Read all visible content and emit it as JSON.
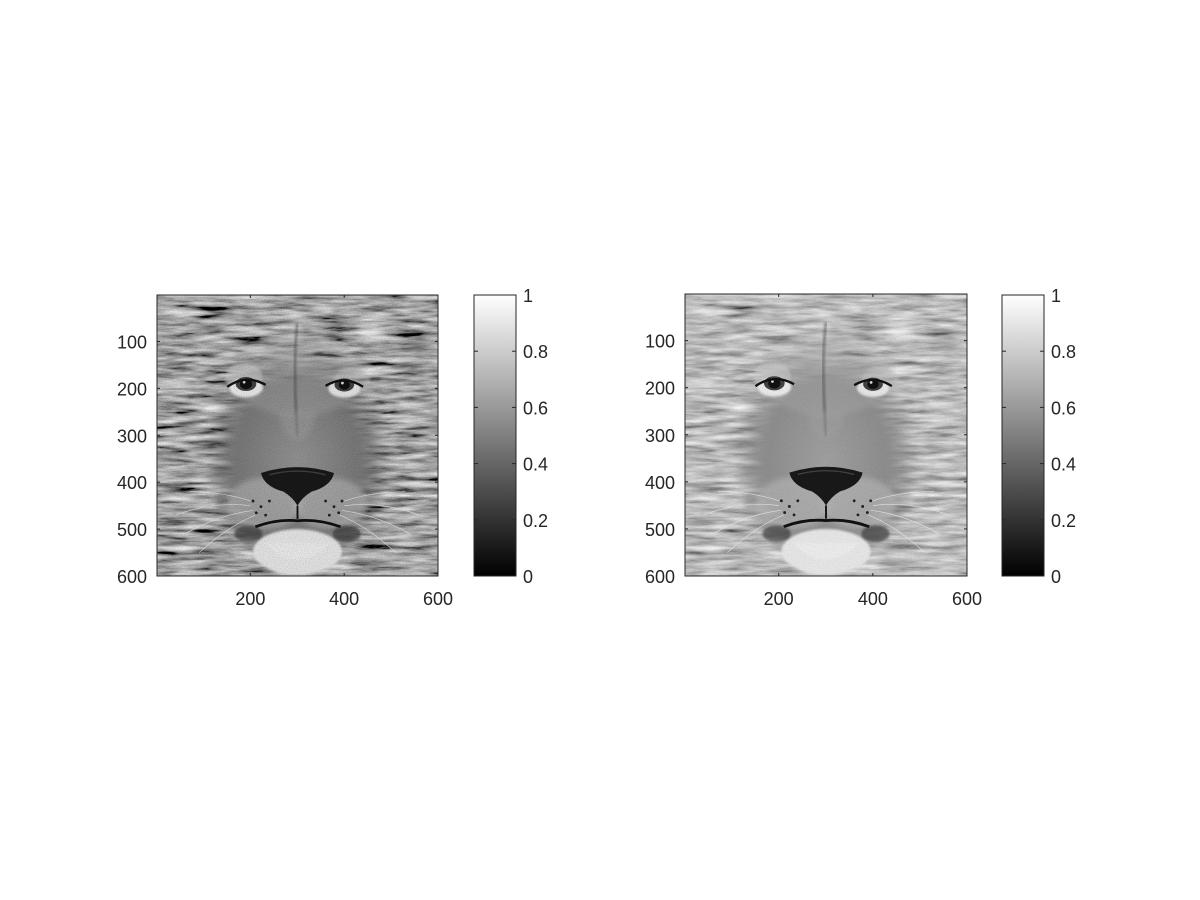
{
  "chart_data": [
    {
      "type": "heatmap",
      "content": "grayscale image of a lion's face",
      "image_size": [
        600,
        600
      ],
      "xlim": [
        1,
        600
      ],
      "ylim": [
        1,
        600
      ],
      "y_direction": "reversed",
      "x_ticks": [
        200,
        400,
        600
      ],
      "x_tick_labels": [
        "200",
        "400",
        "600"
      ],
      "y_ticks": [
        100,
        200,
        300,
        400,
        500,
        600
      ],
      "y_tick_labels": [
        "100",
        "200",
        "300",
        "400",
        "500",
        "600"
      ],
      "colormap": "gray",
      "colorbar": {
        "range": [
          0,
          1
        ],
        "ticks": [
          0,
          0.2,
          0.4,
          0.6,
          0.8,
          1
        ],
        "tick_labels": [
          "0",
          "0.2",
          "0.4",
          "0.6",
          "0.8",
          "1"
        ],
        "placement": "right"
      },
      "contrast": "higher"
    },
    {
      "type": "heatmap",
      "content": "grayscale image of a lion's face",
      "image_size": [
        600,
        600
      ],
      "xlim": [
        1,
        600
      ],
      "ylim": [
        1,
        600
      ],
      "y_direction": "reversed",
      "x_ticks": [
        200,
        400,
        600
      ],
      "x_tick_labels": [
        "200",
        "400",
        "600"
      ],
      "y_ticks": [
        100,
        200,
        300,
        400,
        500,
        600
      ],
      "y_tick_labels": [
        "100",
        "200",
        "300",
        "400",
        "500",
        "600"
      ],
      "colormap": "gray",
      "colorbar": {
        "range": [
          0,
          1
        ],
        "ticks": [
          0,
          0.2,
          0.4,
          0.6,
          0.8,
          1
        ],
        "tick_labels": [
          "0",
          "0.2",
          "0.4",
          "0.6",
          "0.8",
          "1"
        ],
        "placement": "right"
      },
      "contrast": "lower"
    }
  ],
  "style": {
    "axis_color": "#262626",
    "text_color": "#262626",
    "background": "#ffffff"
  }
}
